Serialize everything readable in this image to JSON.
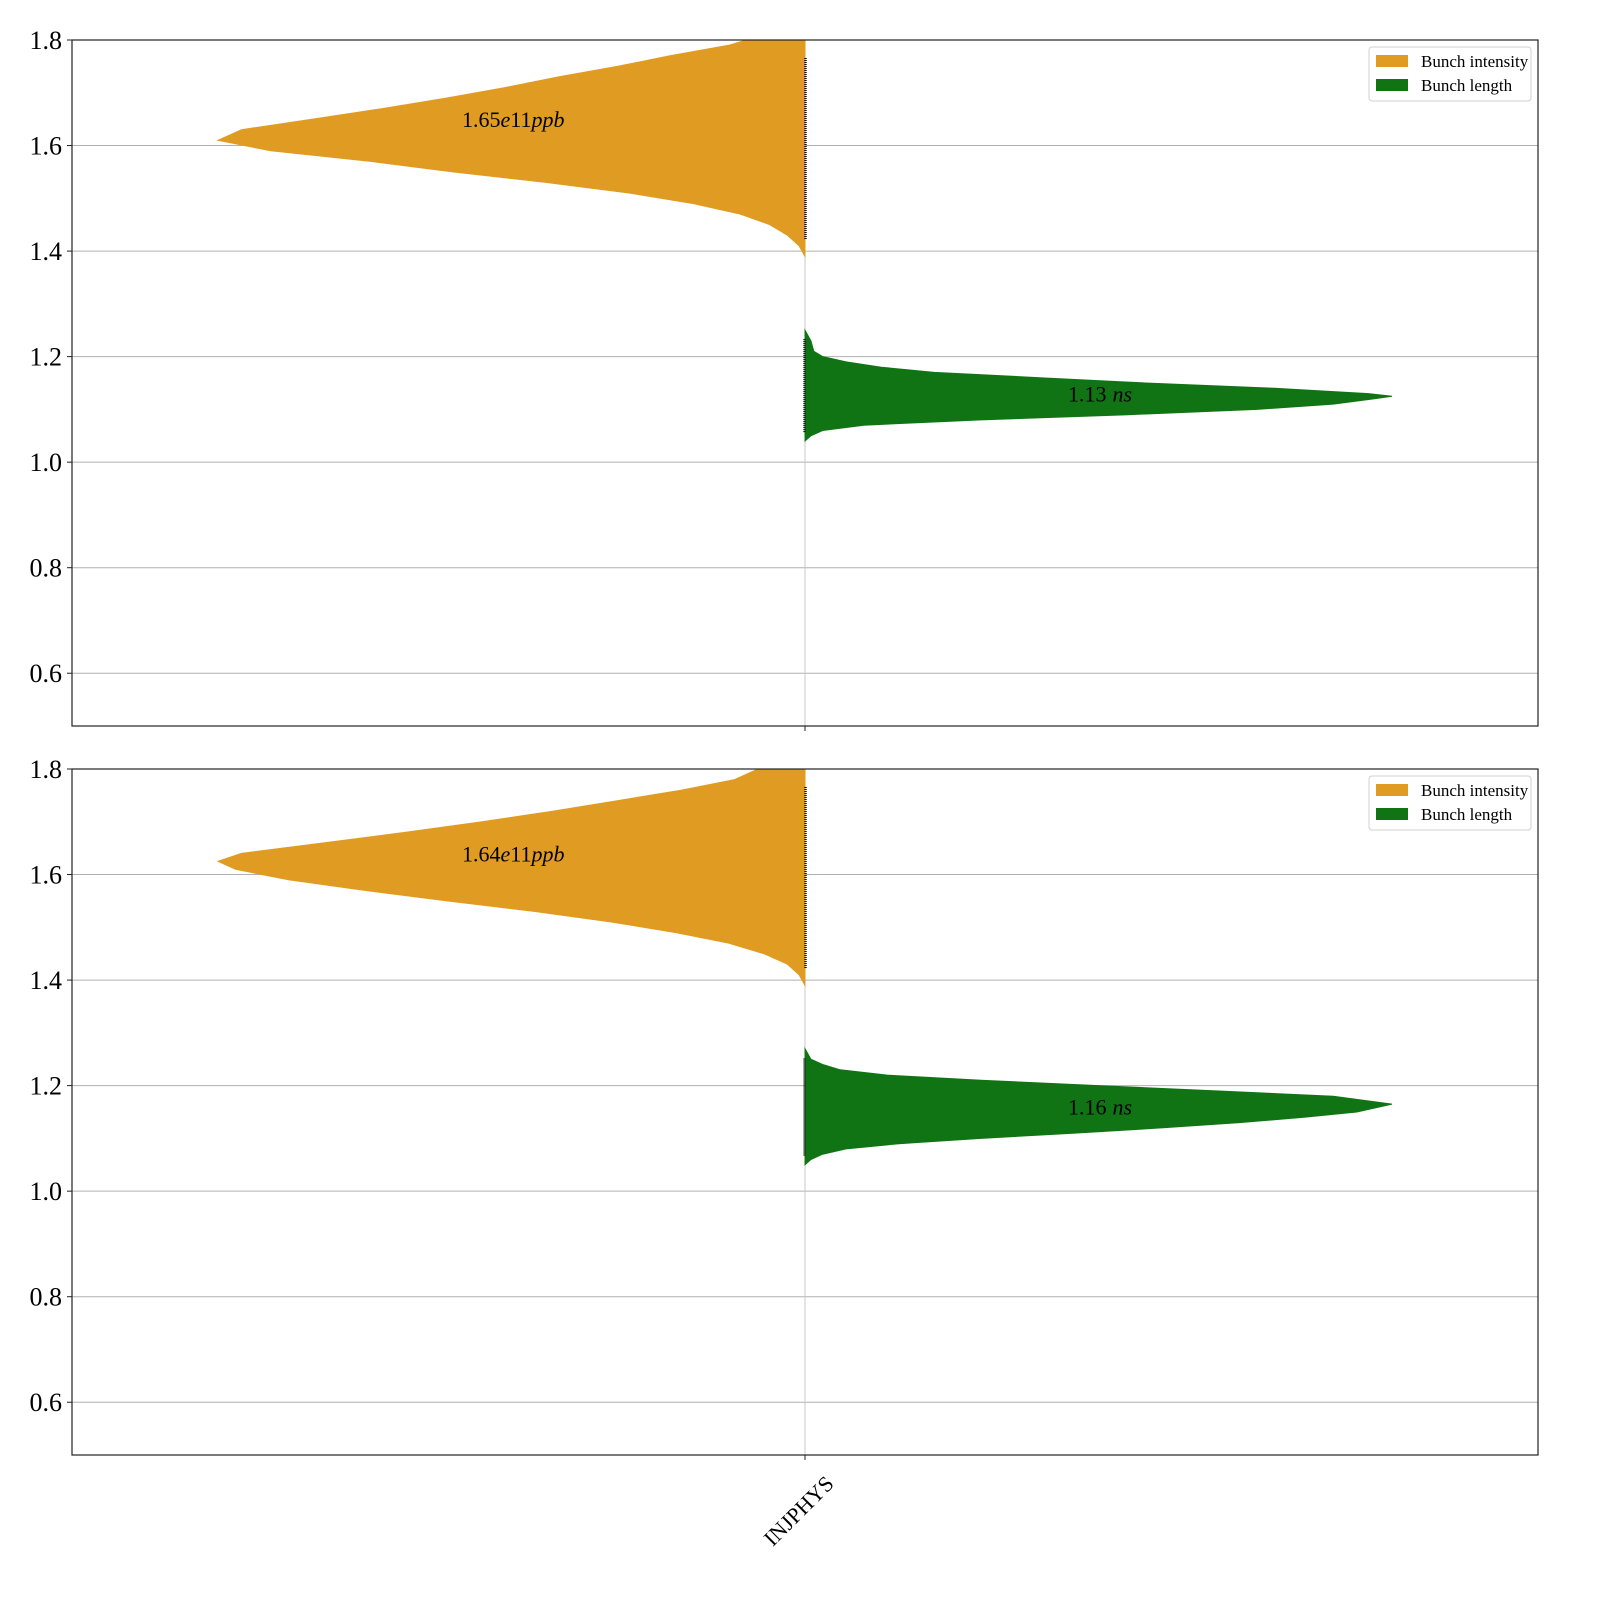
{
  "chart_data": [
    {
      "type": "violin",
      "category": "INJPHYS",
      "ylim": [
        0.5,
        1.8
      ],
      "yticks": [
        0.6,
        0.8,
        1.0,
        1.2,
        1.4,
        1.6,
        1.8
      ],
      "grid": true,
      "legend": {
        "placement": "top-right",
        "entries": [
          {
            "label": "Bunch intensity",
            "color": "#e09c22"
          },
          {
            "label": "Bunch length",
            "color": "#117414"
          }
        ]
      },
      "series": [
        {
          "name": "Bunch intensity",
          "side": "left",
          "color": "#e09c22",
          "annotation": {
            "number": "1.65",
            "exp_text": "e",
            "exp_num": "11",
            "unit": "ppb",
            "value": 1.65
          },
          "density": [
            [
              1.39,
              0.0
            ],
            [
              1.41,
              0.01
            ],
            [
              1.43,
              0.03
            ],
            [
              1.45,
              0.06
            ],
            [
              1.47,
              0.11
            ],
            [
              1.49,
              0.19
            ],
            [
              1.51,
              0.3
            ],
            [
              1.53,
              0.44
            ],
            [
              1.55,
              0.6
            ],
            [
              1.57,
              0.74
            ],
            [
              1.59,
              0.91
            ],
            [
              1.61,
              1.0
            ],
            [
              1.63,
              0.96
            ],
            [
              1.65,
              0.84
            ],
            [
              1.67,
              0.72
            ],
            [
              1.69,
              0.61
            ],
            [
              1.71,
              0.51
            ],
            [
              1.73,
              0.42
            ],
            [
              1.75,
              0.32
            ],
            [
              1.77,
              0.23
            ],
            [
              1.79,
              0.13
            ],
            [
              1.8,
              0.1
            ]
          ]
        },
        {
          "name": "Bunch length",
          "side": "right",
          "color": "#117414",
          "annotation": {
            "number": "1.13",
            "unit": "ns",
            "value": 1.13
          },
          "density": [
            [
              1.04,
              0.0
            ],
            [
              1.05,
              0.01
            ],
            [
              1.06,
              0.03
            ],
            [
              1.07,
              0.1
            ],
            [
              1.08,
              0.3
            ],
            [
              1.09,
              0.55
            ],
            [
              1.1,
              0.77
            ],
            [
              1.11,
              0.9
            ],
            [
              1.12,
              0.97
            ],
            [
              1.125,
              1.0
            ],
            [
              1.13,
              0.96
            ],
            [
              1.14,
              0.8
            ],
            [
              1.15,
              0.58
            ],
            [
              1.16,
              0.4
            ],
            [
              1.17,
              0.22
            ],
            [
              1.18,
              0.13
            ],
            [
              1.19,
              0.07
            ],
            [
              1.2,
              0.03
            ],
            [
              1.21,
              0.015
            ],
            [
              1.23,
              0.01
            ],
            [
              1.25,
              0.0
            ]
          ]
        }
      ]
    },
    {
      "type": "violin",
      "category": "INJPHYS",
      "ylim": [
        0.5,
        1.8
      ],
      "yticks": [
        0.6,
        0.8,
        1.0,
        1.2,
        1.4,
        1.6,
        1.8
      ],
      "grid": true,
      "legend": {
        "placement": "top-right",
        "entries": [
          {
            "label": "Bunch intensity",
            "color": "#e09c22"
          },
          {
            "label": "Bunch length",
            "color": "#117414"
          }
        ]
      },
      "series": [
        {
          "name": "Bunch intensity",
          "side": "left",
          "color": "#e09c22",
          "annotation": {
            "number": "1.64",
            "exp_text": "e",
            "exp_num": "11",
            "unit": "ppb",
            "value": 1.64
          },
          "density": [
            [
              1.39,
              0.0
            ],
            [
              1.41,
              0.01
            ],
            [
              1.43,
              0.03
            ],
            [
              1.45,
              0.07
            ],
            [
              1.47,
              0.13
            ],
            [
              1.49,
              0.22
            ],
            [
              1.51,
              0.33
            ],
            [
              1.53,
              0.46
            ],
            [
              1.55,
              0.61
            ],
            [
              1.57,
              0.75
            ],
            [
              1.59,
              0.88
            ],
            [
              1.61,
              0.97
            ],
            [
              1.625,
              1.0
            ],
            [
              1.64,
              0.96
            ],
            [
              1.66,
              0.82
            ],
            [
              1.68,
              0.68
            ],
            [
              1.7,
              0.55
            ],
            [
              1.72,
              0.43
            ],
            [
              1.74,
              0.32
            ],
            [
              1.76,
              0.21
            ],
            [
              1.78,
              0.12
            ],
            [
              1.8,
              0.08
            ]
          ]
        },
        {
          "name": "Bunch length",
          "side": "right",
          "color": "#117414",
          "annotation": {
            "number": "1.16",
            "unit": "ns",
            "value": 1.16
          },
          "density": [
            [
              1.05,
              0.0
            ],
            [
              1.06,
              0.01
            ],
            [
              1.07,
              0.03
            ],
            [
              1.08,
              0.07
            ],
            [
              1.09,
              0.16
            ],
            [
              1.1,
              0.3
            ],
            [
              1.11,
              0.46
            ],
            [
              1.12,
              0.61
            ],
            [
              1.13,
              0.74
            ],
            [
              1.14,
              0.85
            ],
            [
              1.15,
              0.94
            ],
            [
              1.165,
              1.0
            ],
            [
              1.18,
              0.9
            ],
            [
              1.19,
              0.7
            ],
            [
              1.2,
              0.5
            ],
            [
              1.21,
              0.3
            ],
            [
              1.22,
              0.14
            ],
            [
              1.23,
              0.06
            ],
            [
              1.24,
              0.03
            ],
            [
              1.25,
              0.01
            ],
            [
              1.27,
              0.0
            ]
          ]
        }
      ]
    }
  ]
}
